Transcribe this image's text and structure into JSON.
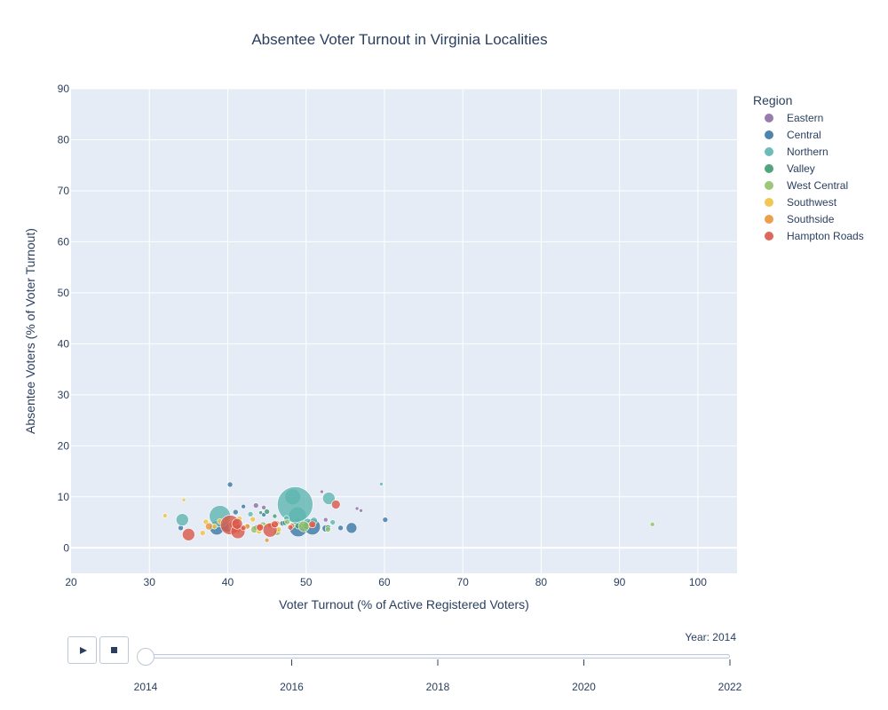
{
  "chart_data": {
    "type": "scatter",
    "title": "Absentee Voter Turnout in Virginia Localities",
    "xlabel": "Voter Turnout (% of Active Registered Voters)",
    "ylabel": "Absentee Voters (% of Voter Turnout)",
    "xlim": [
      20,
      105
    ],
    "ylim": [
      -5,
      90
    ],
    "xticks": [
      20,
      30,
      40,
      50,
      60,
      70,
      80,
      90,
      100
    ],
    "yticks": [
      0,
      10,
      20,
      30,
      40,
      50,
      60,
      70,
      80,
      90
    ],
    "grid": true,
    "legend_title": "Region",
    "legend_position": "right",
    "series": [
      {
        "name": "Eastern",
        "color": "#8c6ea4",
        "points": [
          [
            43.6,
            8.3,
            3
          ],
          [
            44.6,
            7.9,
            2.5
          ],
          [
            52,
            11,
            2
          ],
          [
            56.5,
            7.7,
            2
          ],
          [
            57,
            7.3,
            2
          ],
          [
            47,
            5,
            2.5
          ],
          [
            49.8,
            4.9,
            2.5
          ],
          [
            52.5,
            5.5,
            2.5
          ],
          [
            46.2,
            4.7,
            2
          ]
        ]
      },
      {
        "name": "Central",
        "color": "#3a78a3",
        "points": [
          [
            40.3,
            12.4,
            3
          ],
          [
            34,
            3.9,
            3
          ],
          [
            38.6,
            3.9,
            8
          ],
          [
            39.9,
            4.1,
            6
          ],
          [
            41,
            7,
            3
          ],
          [
            42,
            8.1,
            2.5
          ],
          [
            44.6,
            6.5,
            2.5
          ],
          [
            47,
            4.8,
            3
          ],
          [
            49,
            3.9,
            10
          ],
          [
            50.8,
            4.1,
            9
          ],
          [
            52.5,
            3.8,
            4
          ],
          [
            54.4,
            3.9,
            3
          ],
          [
            55.8,
            3.9,
            6
          ],
          [
            60.1,
            5.5,
            3
          ],
          [
            48.9,
            5.1,
            4
          ]
        ]
      },
      {
        "name": "Northern",
        "color": "#5eb5b1",
        "points": [
          [
            39,
            6.2,
            12
          ],
          [
            48.3,
            10,
            9
          ],
          [
            48.9,
            6.3,
            10
          ],
          [
            48.6,
            8.5,
            20
          ],
          [
            34.2,
            5.5,
            7
          ],
          [
            52.9,
            9.7,
            7
          ],
          [
            50.2,
            4.9,
            5
          ],
          [
            53.4,
            5,
            3
          ],
          [
            42.9,
            6.6,
            3
          ],
          [
            59.6,
            12.5,
            2
          ],
          [
            47.5,
            5.8,
            3
          ],
          [
            51,
            5.3,
            4
          ]
        ]
      },
      {
        "name": "Valley",
        "color": "#3e9b6e",
        "points": [
          [
            45,
            7.1,
            3
          ],
          [
            44.2,
            6.9,
            2
          ],
          [
            46,
            6.2,
            2.5
          ],
          [
            45.5,
            4.5,
            3
          ],
          [
            47.3,
            4.9,
            3
          ],
          [
            49,
            4.3,
            3.5
          ],
          [
            50,
            4.3,
            4
          ],
          [
            52.8,
            4,
            3
          ],
          [
            43.6,
            4,
            3
          ]
        ]
      },
      {
        "name": "West Central",
        "color": "#92c169",
        "points": [
          [
            94.2,
            4.6,
            2.5
          ],
          [
            43.4,
            3.6,
            4
          ],
          [
            44.5,
            4.4,
            4
          ],
          [
            46.3,
            3.1,
            4
          ],
          [
            49.7,
            4.2,
            6
          ],
          [
            52.8,
            3.6,
            3
          ],
          [
            47.6,
            5.1,
            3
          ],
          [
            42.5,
            4.3,
            3
          ]
        ]
      },
      {
        "name": "Southwest",
        "color": "#f0c040",
        "points": [
          [
            32,
            6.3,
            2.5
          ],
          [
            34.4,
            9.4,
            2
          ],
          [
            36.8,
            2.9,
            3
          ],
          [
            37.2,
            5.1,
            3
          ],
          [
            38.3,
            4.2,
            3
          ],
          [
            39,
            5.2,
            3
          ],
          [
            40.5,
            4,
            3
          ],
          [
            41.5,
            5.7,
            3
          ],
          [
            42.2,
            4.1,
            3
          ],
          [
            43.2,
            5.6,
            3
          ],
          [
            44,
            3.2,
            3
          ],
          [
            45.7,
            4.7,
            3
          ],
          [
            46.5,
            3.6,
            3
          ]
        ]
      },
      {
        "name": "Southside",
        "color": "#ea953a",
        "points": [
          [
            37.6,
            4.2,
            4
          ],
          [
            40.6,
            4.6,
            4
          ],
          [
            41.2,
            3.5,
            4
          ],
          [
            42.5,
            4.2,
            3
          ],
          [
            44.2,
            4,
            4
          ],
          [
            45.4,
            4.4,
            3
          ],
          [
            45,
            1.5,
            2.5
          ],
          [
            46.3,
            4.8,
            3
          ],
          [
            48.2,
            4.3,
            3
          ],
          [
            50.8,
            4.5,
            3
          ]
        ]
      },
      {
        "name": "Hampton Roads",
        "color": "#d9574a",
        "points": [
          [
            40.3,
            4.5,
            11
          ],
          [
            41.3,
            3.2,
            8
          ],
          [
            41.2,
            4.7,
            6
          ],
          [
            35,
            2.6,
            7
          ],
          [
            45.4,
            3.5,
            8
          ],
          [
            44.1,
            4,
            4
          ],
          [
            46,
            4.6,
            4
          ],
          [
            48,
            4,
            3
          ],
          [
            50.8,
            4.6,
            4
          ],
          [
            53.8,
            8.5,
            5
          ],
          [
            42,
            3.9,
            3
          ]
        ]
      }
    ]
  },
  "slider": {
    "prefix": "Year: ",
    "current": "2014",
    "ticks": [
      "2014",
      "2016",
      "2018",
      "2020",
      "2022"
    ],
    "value_fraction": 0
  },
  "controls": {
    "play_icon": "play-icon",
    "stop_icon": "stop-icon"
  }
}
